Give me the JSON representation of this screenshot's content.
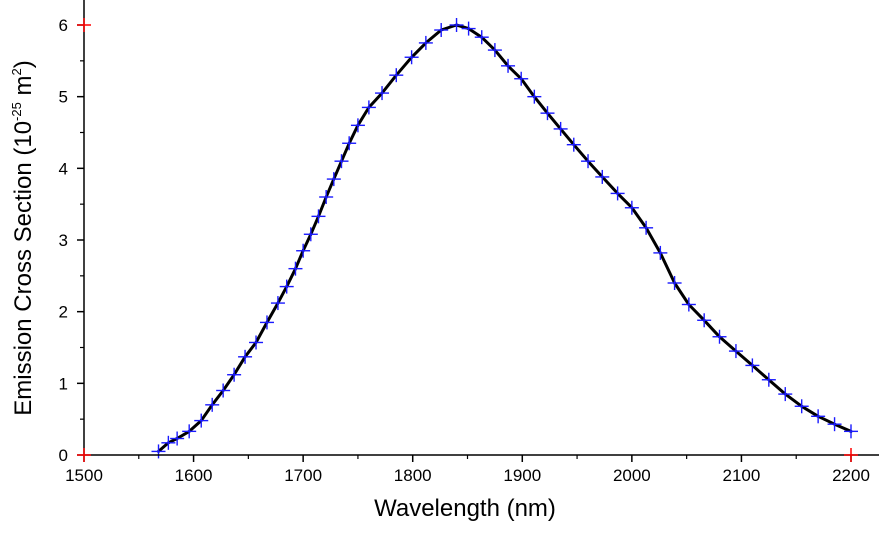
{
  "chart_data": {
    "type": "line",
    "title": "",
    "xlabel": "Wavelength (nm)",
    "ylabel_main": "Emission Cross Section (10",
    "ylabel_exp": "-25",
    "ylabel_unit": " m",
    "ylabel_unit_exp": "2",
    "ylabel_close": ")",
    "xlim": [
      1500,
      2200
    ],
    "ylim": [
      0,
      6
    ],
    "xticks": [
      1500,
      1600,
      1700,
      1800,
      1900,
      2000,
      2100,
      2200
    ],
    "yticks": [
      0,
      1,
      2,
      3,
      4,
      5,
      6
    ],
    "grid": false,
    "colors": {
      "line": "#000000",
      "marker": "#1a1aff",
      "corner_marker": "#ff0000",
      "axes": "#000000"
    },
    "series": [
      {
        "name": "Emission cross section",
        "marker": "plus",
        "x": [
          1568,
          1577,
          1585,
          1596,
          1607,
          1617,
          1627,
          1637,
          1647,
          1657,
          1667,
          1677,
          1685,
          1693,
          1700,
          1707,
          1714,
          1721,
          1728,
          1735,
          1742,
          1750,
          1760,
          1772,
          1785,
          1799,
          1812,
          1826,
          1840,
          1851,
          1863,
          1875,
          1887,
          1899,
          1911,
          1923,
          1935,
          1947,
          1960,
          1973,
          1987,
          2000,
          2013,
          2026,
          2039,
          2052,
          2066,
          2080,
          2095,
          2110,
          2125,
          2140,
          2155,
          2170,
          2185,
          2200
        ],
        "y": [
          0.05,
          0.17,
          0.23,
          0.33,
          0.48,
          0.7,
          0.9,
          1.12,
          1.37,
          1.57,
          1.85,
          2.12,
          2.35,
          2.6,
          2.85,
          3.08,
          3.33,
          3.6,
          3.85,
          4.1,
          4.35,
          4.6,
          4.85,
          5.05,
          5.3,
          5.55,
          5.75,
          5.93,
          6.0,
          5.95,
          5.83,
          5.65,
          5.43,
          5.25,
          5.0,
          4.77,
          4.55,
          4.33,
          4.1,
          3.88,
          3.65,
          3.45,
          3.17,
          2.82,
          2.4,
          2.1,
          1.88,
          1.65,
          1.45,
          1.25,
          1.05,
          0.85,
          0.68,
          0.54,
          0.43,
          0.33
        ]
      }
    ],
    "corner_markers": [
      {
        "x": 1500,
        "y": 6
      },
      {
        "x": 1500,
        "y": 0
      },
      {
        "x": 2200,
        "y": 0
      }
    ]
  }
}
